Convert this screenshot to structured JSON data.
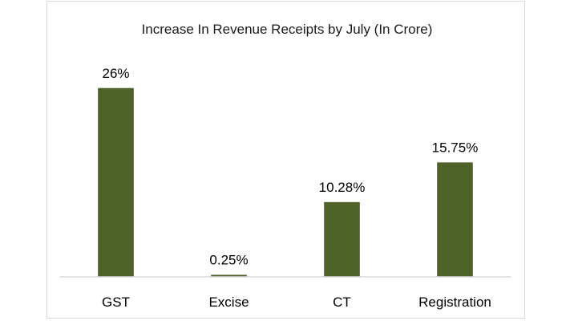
{
  "chart_data": {
    "type": "bar",
    "title": "Increase In Revenue Receipts by July (In Crore)",
    "categories": [
      "GST",
      "Excise",
      "CT",
      "Registration"
    ],
    "values": [
      26,
      0.25,
      10.28,
      15.75
    ],
    "data_labels": [
      "26%",
      "0.25%",
      "10.28%",
      "15.75%"
    ],
    "xlabel": "",
    "ylabel": "",
    "ylim": [
      0,
      26
    ],
    "grid": false,
    "legend": "none",
    "bar_color": "#4f6228",
    "axis_color": "#d9d9d9"
  }
}
